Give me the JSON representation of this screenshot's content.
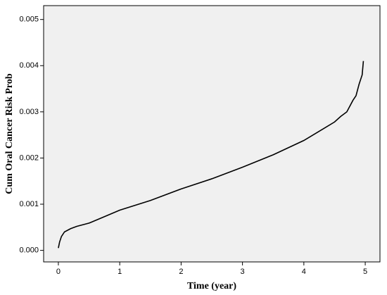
{
  "chart_data": {
    "type": "line",
    "x_label": "Time (year)",
    "y_label": "Cum Oral Cancer Risk Prob",
    "x": [
      0,
      0.02,
      0.05,
      0.1,
      0.2,
      0.3,
      0.5,
      0.75,
      1.0,
      1.5,
      2.0,
      2.5,
      3.0,
      3.5,
      4.0,
      4.3,
      4.5,
      4.6,
      4.7,
      4.8,
      4.85,
      4.9,
      4.95,
      4.97
    ],
    "series": [
      {
        "color": "#000000",
        "values": [
          5e-05,
          0.00018,
          0.0003,
          0.0004,
          0.00047,
          0.00052,
          0.00059,
          0.00073,
          0.00087,
          0.00108,
          0.00133,
          0.00155,
          0.0018,
          0.00207,
          0.00238,
          0.00262,
          0.00278,
          0.0029,
          0.003,
          0.00325,
          0.00335,
          0.0036,
          0.0038,
          0.0041
        ]
      }
    ],
    "xlim": [
      -0.24,
      5.24
    ],
    "ylim": [
      -0.00025,
      0.0053
    ],
    "xticks": [
      0,
      1,
      2,
      3,
      4,
      5
    ],
    "yticks": [
      {
        "value": 0,
        "label": "0.000"
      },
      {
        "value": 0.001,
        "label": "0.001"
      },
      {
        "value": 0.002,
        "label": "0.002"
      },
      {
        "value": 0.003,
        "label": "0.003"
      },
      {
        "value": 0.004,
        "label": "0.004"
      },
      {
        "value": 0.005,
        "label": "0.005"
      }
    ],
    "background": "#f0f0f0"
  }
}
